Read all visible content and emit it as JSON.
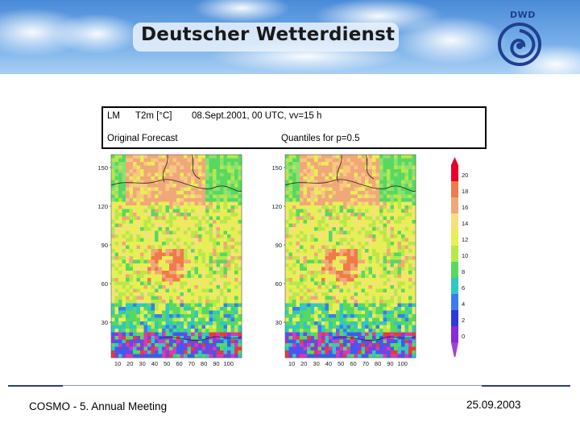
{
  "header": {
    "title": "Deutscher Wetterdienst",
    "logo_text": "DWD"
  },
  "info_box": {
    "model": "LM",
    "variable": "T2m [°C]",
    "datetime": "08.Sept.2001, 00 UTC, vv=15 h",
    "left_label": "Original Forecast",
    "right_label": "Quantiles for p=0.5"
  },
  "maps": {
    "y_ticks": [
      "150",
      "120",
      "90",
      "60",
      "30"
    ],
    "x_ticks": [
      "10",
      "20",
      "30",
      "40",
      "50",
      "60",
      "70",
      "80",
      "90",
      "100"
    ]
  },
  "colorbar": {
    "labels": [
      "20",
      "18",
      "16",
      "14",
      "12",
      "10",
      "8",
      "6",
      "4",
      "2",
      "0"
    ],
    "colors": [
      "#e8002a",
      "#f07a4a",
      "#f0a878",
      "#f7e080",
      "#e8ee55",
      "#b8e84a",
      "#58d860",
      "#30c8c0",
      "#3a7cf0",
      "#2a3adc",
      "#8a2ad8"
    ]
  },
  "footer": {
    "left": "COSMO - 5. Annual Meeting",
    "right": "25.09.2003"
  }
}
